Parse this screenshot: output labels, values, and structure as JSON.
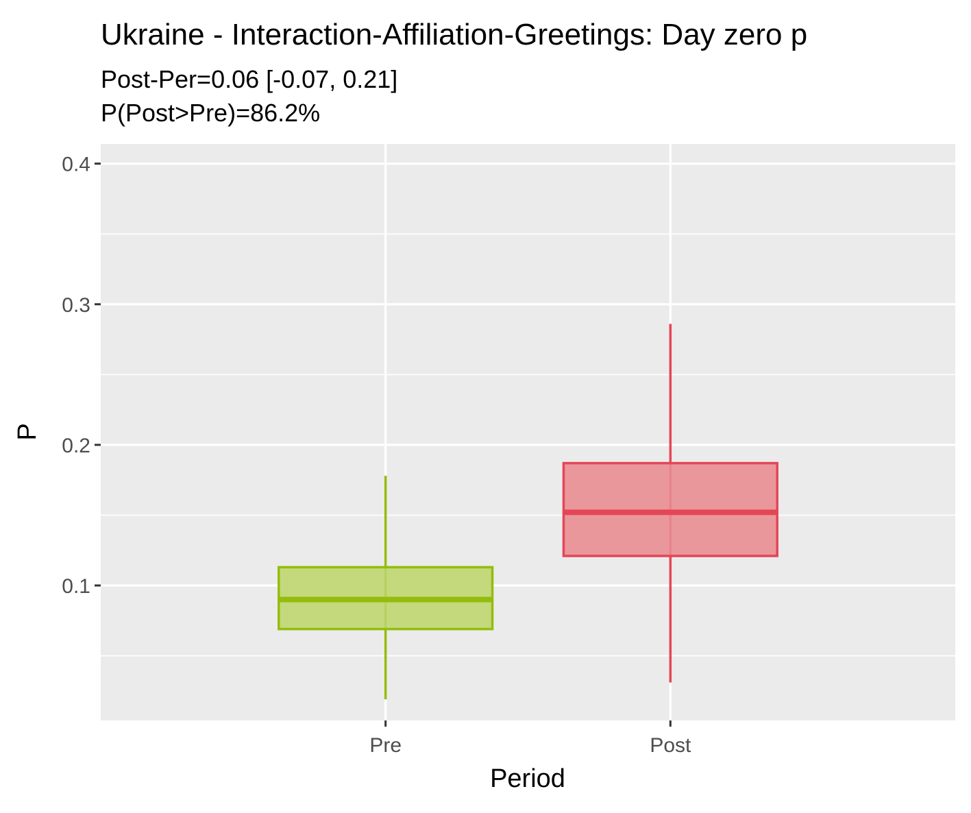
{
  "chart_data": {
    "type": "box",
    "title": "Ukraine - Interaction-Affiliation-Greetings: Day zero p",
    "subtitle_lines": [
      "Post-Per=0.06 [-0.07, 0.21]",
      "P(Post>Pre)=86.2%"
    ],
    "xlabel": "Period",
    "ylabel": "P",
    "categories": [
      "Pre",
      "Post"
    ],
    "ylim": [
      0.004,
      0.414
    ],
    "yticks": [
      0.1,
      0.2,
      0.3,
      0.4
    ],
    "ytick_labels": [
      "0.1",
      "0.2",
      "0.3",
      "0.4"
    ],
    "grid": true,
    "boxes": [
      {
        "category": "Pre",
        "whisker_low": 0.019,
        "q1": 0.069,
        "median": 0.09,
        "q3": 0.113,
        "whisker_high": 0.178,
        "color": "#95bc0e",
        "fill": "#c3d97b"
      },
      {
        "category": "Post",
        "whisker_low": 0.031,
        "q1": 0.121,
        "median": 0.152,
        "q3": 0.187,
        "whisker_high": 0.286,
        "color": "#e44655",
        "fill": "#ea979c"
      }
    ],
    "colors": {
      "panel_background": "#ebebeb",
      "grid": "#ffffff",
      "axis_ticks": "#333333"
    }
  }
}
